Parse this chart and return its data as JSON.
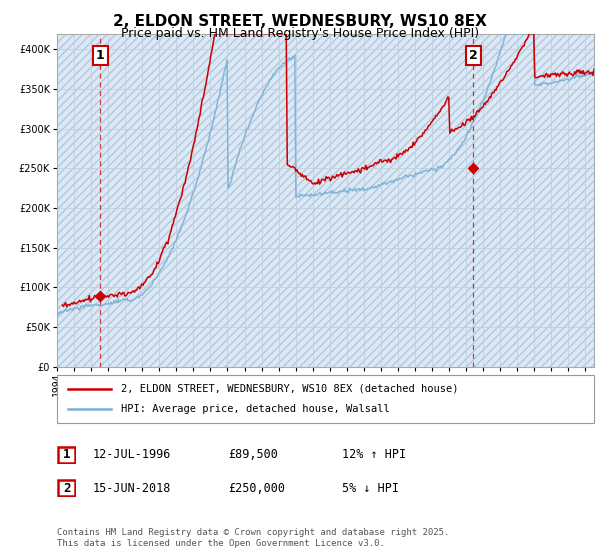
{
  "title": "2, ELDON STREET, WEDNESBURY, WS10 8EX",
  "subtitle": "Price paid vs. HM Land Registry's House Price Index (HPI)",
  "legend_line1": "2, ELDON STREET, WEDNESBURY, WS10 8EX (detached house)",
  "legend_line2": "HPI: Average price, detached house, Walsall",
  "annotation1_label": "1",
  "annotation1_date": "12-JUL-1996",
  "annotation1_price": "£89,500",
  "annotation1_hpi": "12% ↑ HPI",
  "annotation2_label": "2",
  "annotation2_date": "15-JUN-2018",
  "annotation2_price": "£250,000",
  "annotation2_hpi": "5% ↓ HPI",
  "footer": "Contains HM Land Registry data © Crown copyright and database right 2025.\nThis data is licensed under the Open Government Licence v3.0.",
  "ylim": [
    0,
    420000
  ],
  "xmin": 1994,
  "xmax": 2025.5,
  "sale1_year": 1996.53,
  "sale1_price": 89500,
  "sale2_year": 2018.45,
  "sale2_price": 250000,
  "red_color": "#cc0000",
  "blue_color": "#7bafd4",
  "chart_bg_color": "#dce9f5",
  "hatch_color": "#b0c8e0",
  "grid_color": "#c0d0e0",
  "annotation_box_color": "#cc0000",
  "title_fontsize": 11,
  "subtitle_fontsize": 9,
  "tick_fontsize": 7
}
